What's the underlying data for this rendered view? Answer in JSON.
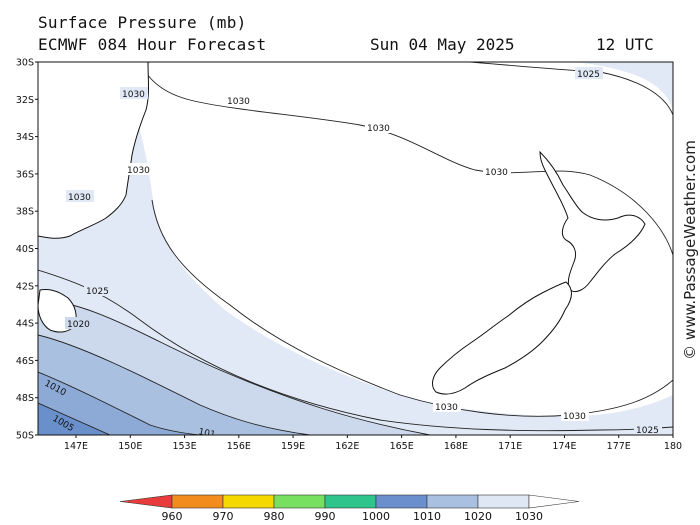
{
  "header": {
    "title": "Surface Pressure (mb)",
    "subtitle": "ECMWF 084 Hour Forecast",
    "date": "Sun 04 May 2025",
    "time": "12 UTC"
  },
  "watermark": "© www.PassageWeather.com",
  "map": {
    "lat_labels": [
      "30S",
      "32S",
      "34S",
      "36S",
      "38S",
      "40S",
      "42S",
      "44S",
      "46S",
      "48S",
      "50S"
    ],
    "lon_labels": [
      "147E",
      "150E",
      "153E",
      "156E",
      "159E",
      "162E",
      "165E",
      "168E",
      "171E",
      "174E",
      "177E",
      "180"
    ],
    "isobar_labels": {
      "i1030_a": "1030",
      "i1030_b": "1030",
      "i1030_c": "1030",
      "i1030_d": "1030",
      "i1030_e": "1030",
      "i1030_f": "1030",
      "i1030_g": "1030",
      "i1030_h": "1030",
      "i1025_a": "1025",
      "i1025_b": "1025",
      "i1025_c": "1025",
      "i1020": "1020",
      "i1010": "1010",
      "i1005": "1005",
      "i10xx": "101"
    },
    "colors": {
      "above_1030": "#ffffff",
      "1025_1030": "#e2e9f6",
      "1020_1025": "#ccd9ed",
      "1015_1020": "#a9c0e1",
      "1010_1015": "#8daad6",
      "1005_1010": "#6a90cc"
    }
  },
  "legend": {
    "ticks": [
      "960",
      "970",
      "980",
      "990",
      "1000",
      "1010",
      "1020",
      "1030"
    ],
    "colors": [
      "#e83c3c",
      "#f28c1c",
      "#f5d800",
      "#78e060",
      "#2ec48c",
      "#6a8fcc",
      "#a9c0e1",
      "#dfe7f5",
      "#ffffff"
    ]
  }
}
